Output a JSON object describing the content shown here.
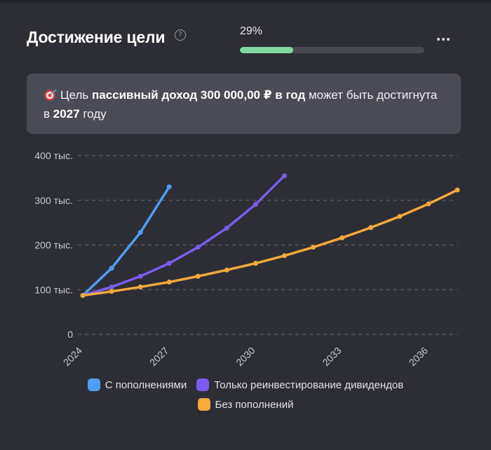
{
  "header": {
    "title": "Достижение цели",
    "help_icon": "question-circle-icon",
    "progress_label": "29%",
    "progress_percent": 29,
    "more_icon": "more-horizontal-icon"
  },
  "info": {
    "icon": "target-dart-icon",
    "t1": "Цель ",
    "b1": "пассивный доход 300 000,00 ₽ в год",
    "t2": " может быть достигнута в ",
    "b2": "2027",
    "t3": " году"
  },
  "colors": {
    "background": "#2d2d35",
    "progress_fill": "#7ed8a0",
    "progress_track": "#4a4a54",
    "info_box": "#4a4b56",
    "grid": "#6a6a74"
  },
  "chart_data": {
    "type": "line",
    "y_ticks": [
      {
        "value": 0,
        "label": "0"
      },
      {
        "value": 100000,
        "label": "100 тыс."
      },
      {
        "value": 200000,
        "label": "200 тыс."
      },
      {
        "value": 300000,
        "label": "300 тыс."
      },
      {
        "value": 400000,
        "label": "400 тыс."
      }
    ],
    "x_ticks": [
      {
        "value": 2024,
        "label": "2024"
      },
      {
        "value": 2027,
        "label": "2027"
      },
      {
        "value": 2030,
        "label": "2030"
      },
      {
        "value": 2033,
        "label": "2033"
      },
      {
        "value": 2036,
        "label": "2036"
      }
    ],
    "xlim": [
      2024,
      2037
    ],
    "ylim": [
      0,
      400000
    ],
    "grid": "horizontal dashed",
    "legend_position": "bottom",
    "series": [
      {
        "name": "С пополнениями",
        "color": "#4f9ef5",
        "x": [
          2024,
          2025,
          2026,
          2027
        ],
        "y": [
          87000,
          148000,
          228000,
          330000
        ]
      },
      {
        "name": "Только реинвестирование дивидендов",
        "color": "#7b5cf0",
        "x": [
          2024,
          2025,
          2026,
          2027,
          2028,
          2029,
          2030,
          2031
        ],
        "y": [
          87000,
          106000,
          130000,
          159000,
          195000,
          238000,
          291000,
          355000
        ]
      },
      {
        "name": "Без пополнений",
        "color": "#f7a93b",
        "x": [
          2024,
          2025,
          2026,
          2027,
          2028,
          2029,
          2030,
          2031,
          2032,
          2033,
          2034,
          2035,
          2036,
          2037
        ],
        "y": [
          87000,
          96000,
          106000,
          117000,
          130000,
          144000,
          159000,
          176000,
          195000,
          216000,
          239000,
          264000,
          292000,
          323000
        ]
      }
    ]
  }
}
